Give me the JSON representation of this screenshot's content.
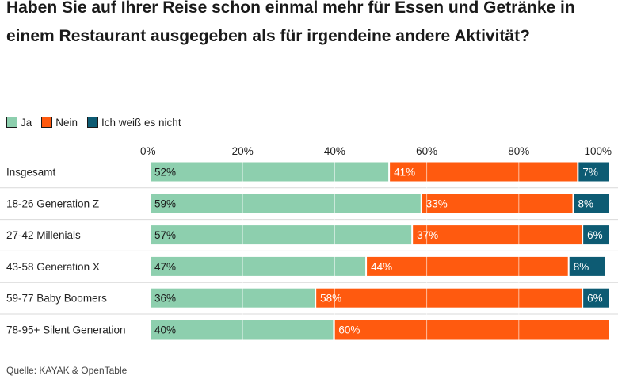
{
  "title": "Haben Sie auf Ihrer Reise schon einmal mehr für Essen und Getränke in einem Restaurant ausgegeben als für irgendeine andere Aktivität?",
  "source": "Quelle: KAYAK & OpenTable",
  "colors": {
    "ja": "#8dcfae",
    "nein": "#ff5a0f",
    "weiss_nicht": "#0d5b73",
    "grid": "#ffffff"
  },
  "chart_data": {
    "type": "bar",
    "orientation": "horizontal",
    "stacked": true,
    "categories": [
      "Insgesamt",
      "18-26 Generation Z",
      "27-42 Millenials",
      "43-58 Generation X",
      "59-77 Baby Boomers",
      "78-95+ Silent Generation"
    ],
    "series": [
      {
        "name": "Ja",
        "color": "#8dcfae",
        "labelColor": "#1a1a1a",
        "values": [
          52,
          59,
          57,
          47,
          36,
          40
        ]
      },
      {
        "name": "Nein",
        "color": "#ff5a0f",
        "labelColor": "#ffffff",
        "values": [
          41,
          33,
          37,
          44,
          58,
          60
        ]
      },
      {
        "name": "Ich weiß es nicht",
        "color": "#0d5b73",
        "labelColor": "#ffffff",
        "values": [
          7,
          8,
          6,
          8,
          6,
          0
        ]
      }
    ],
    "xlim": [
      0,
      100
    ],
    "ticks": [
      "0%",
      "20%",
      "40%",
      "60%",
      "80%",
      "100%"
    ],
    "value_suffix": "%",
    "legend_position": "top-left",
    "grid": true
  }
}
